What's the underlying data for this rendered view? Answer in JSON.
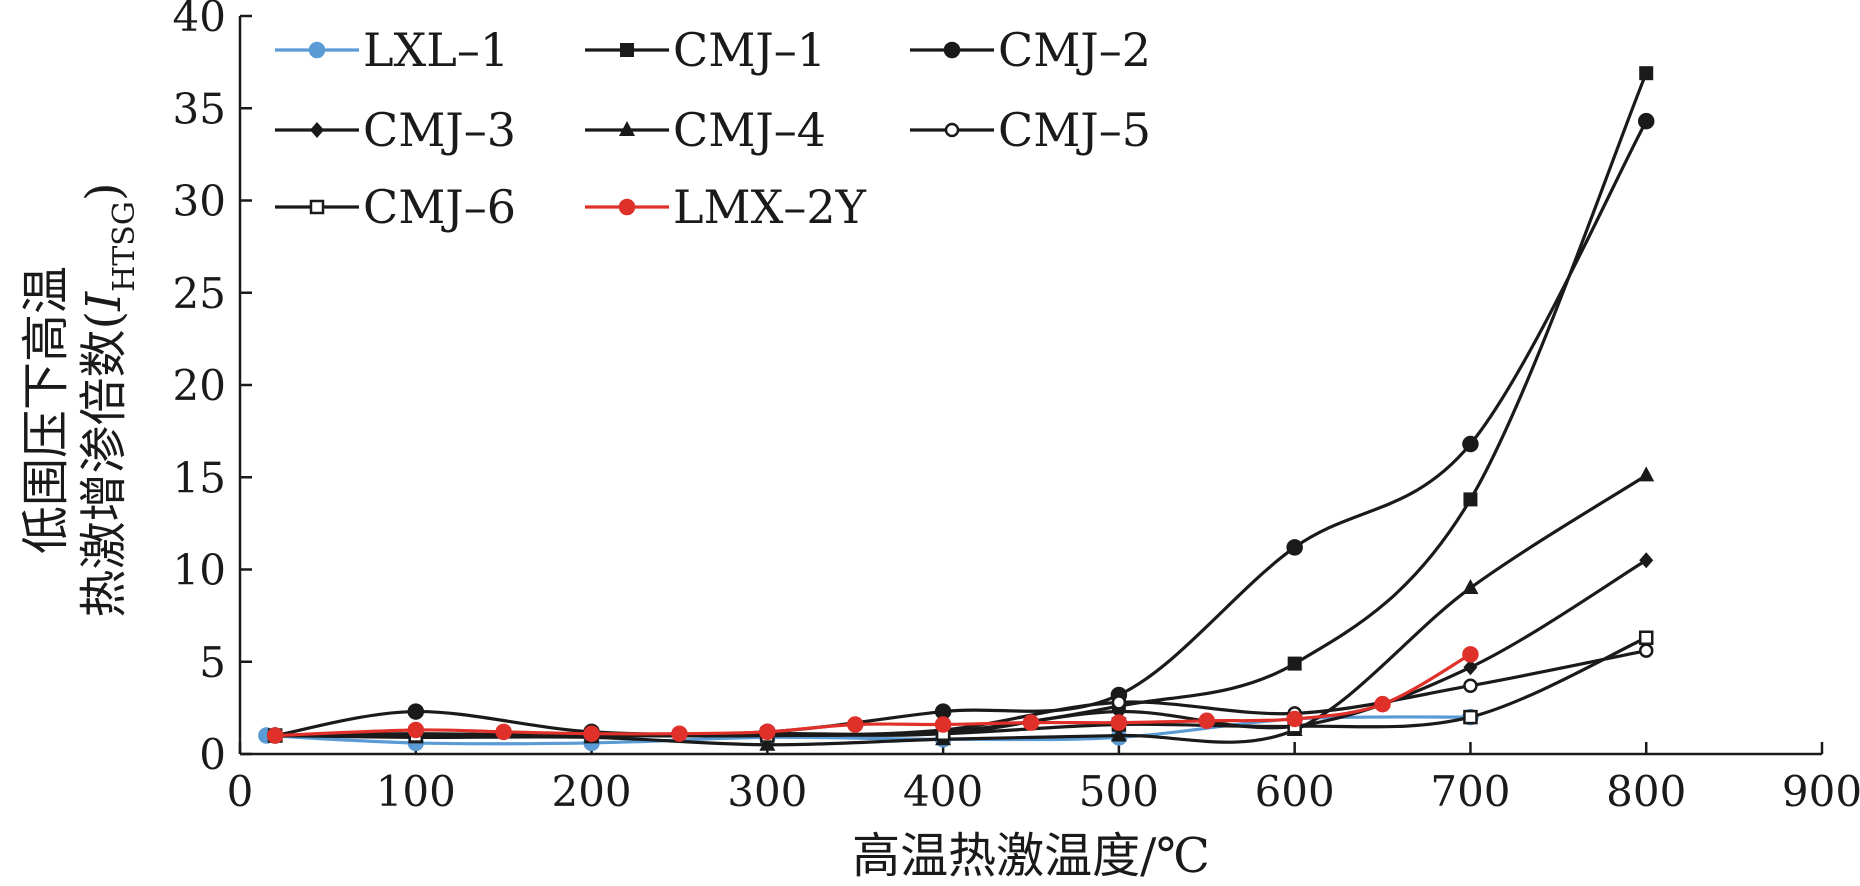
{
  "chart_data": {
    "type": "line",
    "xlabel": "高温热激温度/℃",
    "ylabel_line1": "低围压下高温",
    "ylabel_line2_main": "热激增渗倍数(",
    "ylabel_line2_italic": "I",
    "ylabel_line2_sub": "HTSG",
    "ylabel_line2_close": ")",
    "xlim": [
      0,
      900
    ],
    "ylim": [
      0,
      40
    ],
    "x_ticks": [
      0,
      100,
      200,
      300,
      400,
      500,
      600,
      700,
      800,
      900
    ],
    "y_ticks": [
      0,
      5,
      10,
      15,
      20,
      25,
      30,
      35,
      40
    ],
    "grid": false,
    "legend_position": "top-left",
    "series": [
      {
        "name": "LXL–1",
        "marker": "circle-filled",
        "color": "#5b9bd5",
        "x": [
          15,
          100,
          200,
          300,
          400,
          500,
          600,
          700
        ],
        "y": [
          1.0,
          0.6,
          0.6,
          0.9,
          0.8,
          0.9,
          1.9,
          2.0
        ]
      },
      {
        "name": "CMJ–1",
        "marker": "square-filled",
        "color": "#1a1a1a",
        "x": [
          20,
          100,
          200,
          300,
          400,
          500,
          600,
          700,
          800
        ],
        "y": [
          1.0,
          1.1,
          1.0,
          1.1,
          1.2,
          2.6,
          4.9,
          13.8,
          36.9
        ]
      },
      {
        "name": "CMJ–2",
        "marker": "circle-filled",
        "color": "#1a1a1a",
        "x": [
          20,
          100,
          200,
          300,
          400,
          500,
          600,
          700,
          800
        ],
        "y": [
          1.0,
          2.3,
          1.2,
          1.2,
          2.3,
          3.2,
          11.2,
          16.8,
          34.3
        ]
      },
      {
        "name": "CMJ–3",
        "marker": "diamond-filled",
        "color": "#1a1a1a",
        "x": [
          20,
          100,
          200,
          300,
          400,
          500,
          600,
          700,
          800
        ],
        "y": [
          1.0,
          1.0,
          1.0,
          1.1,
          1.1,
          2.3,
          1.5,
          4.7,
          10.5
        ]
      },
      {
        "name": "CMJ–4",
        "marker": "triangle-filled",
        "color": "#1a1a1a",
        "x": [
          20,
          100,
          200,
          300,
          400,
          500,
          600,
          700,
          800
        ],
        "y": [
          1.0,
          0.9,
          0.9,
          0.5,
          0.8,
          1.0,
          1.3,
          9.0,
          15.1
        ]
      },
      {
        "name": "CMJ–5",
        "marker": "circle-open",
        "color": "#1a1a1a",
        "x": [
          20,
          100,
          200,
          300,
          400,
          500,
          600,
          700,
          800
        ],
        "y": [
          1.0,
          1.0,
          1.0,
          1.0,
          1.3,
          2.8,
          2.2,
          3.7,
          5.6
        ]
      },
      {
        "name": "CMJ–6",
        "marker": "square-open",
        "color": "#1a1a1a",
        "x": [
          20,
          100,
          200,
          300,
          400,
          500,
          600,
          700,
          800
        ],
        "y": [
          1.0,
          1.0,
          1.0,
          1.0,
          1.1,
          1.6,
          1.5,
          2.0,
          6.3
        ]
      },
      {
        "name": "LMX–2Y",
        "marker": "circle-filled",
        "color": "#e0302a",
        "x": [
          20,
          100,
          150,
          200,
          250,
          300,
          350,
          400,
          450,
          500,
          550,
          600,
          650,
          700
        ],
        "y": [
          1.0,
          1.3,
          1.2,
          1.1,
          1.1,
          1.2,
          1.6,
          1.6,
          1.7,
          1.7,
          1.8,
          1.9,
          2.7,
          5.4
        ]
      }
    ]
  }
}
